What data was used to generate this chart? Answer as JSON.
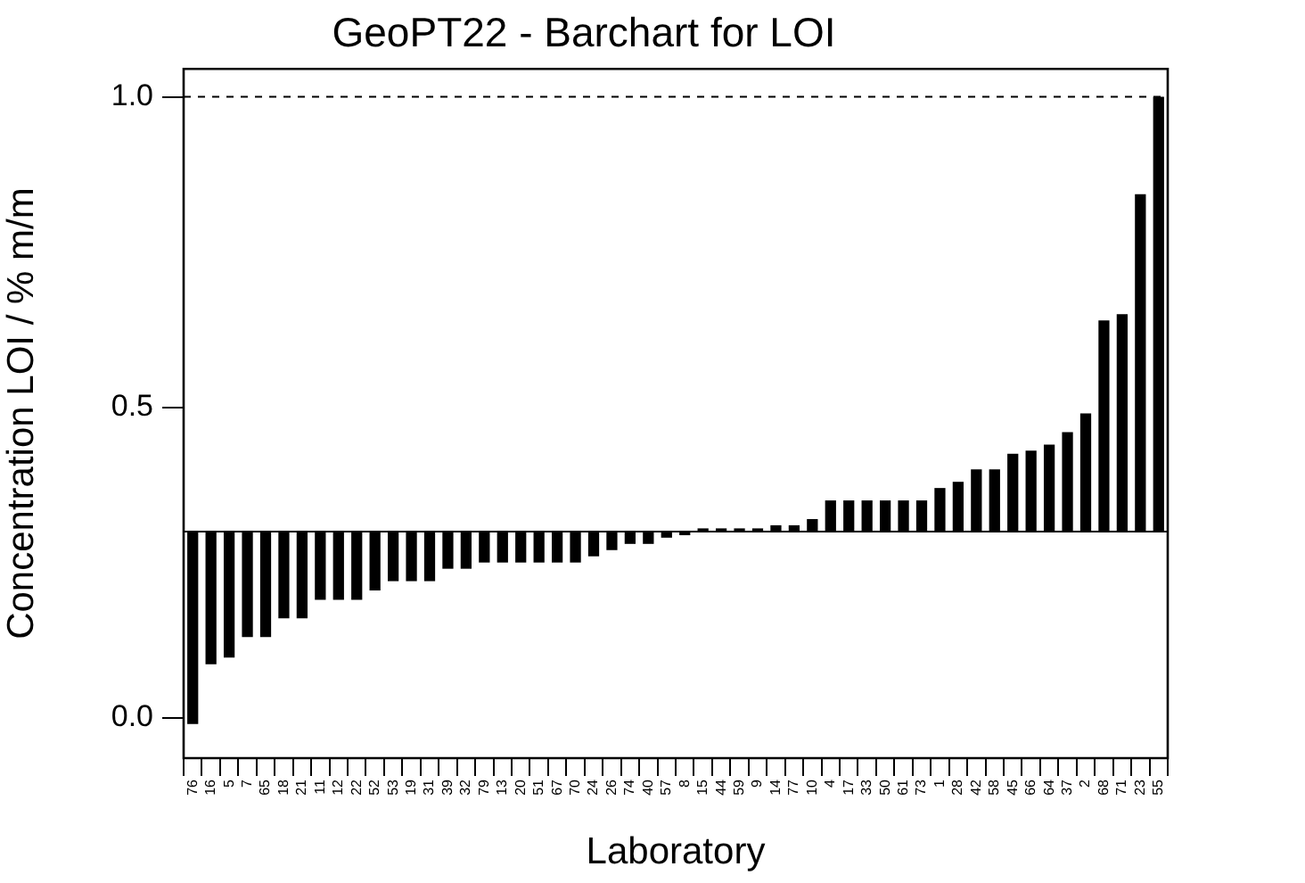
{
  "chart_data": {
    "type": "bar",
    "title": "GeoPT22 - Barchart for LOI",
    "xlabel": "Laboratory",
    "ylabel": "Concentration LOI / % m/m",
    "categories": [
      "76",
      "16",
      "5",
      "7",
      "65",
      "18",
      "21",
      "11",
      "12",
      "22",
      "52",
      "53",
      "19",
      "31",
      "39",
      "32",
      "79",
      "13",
      "20",
      "51",
      "67",
      "70",
      "24",
      "26",
      "74",
      "40",
      "57",
      "8",
      "15",
      "44",
      "59",
      "9",
      "14",
      "77",
      "10",
      "4",
      "17",
      "33",
      "50",
      "61",
      "73",
      "1",
      "28",
      "42",
      "58",
      "45",
      "66",
      "64",
      "37",
      "2",
      "68",
      "71",
      "23",
      "55"
    ],
    "base": [
      0.3,
      0.3,
      0.3,
      0.3,
      0.3,
      0.3,
      0.3,
      0.3,
      0.3,
      0.3,
      0.3,
      0.3,
      0.3,
      0.3,
      0.3,
      0.3,
      0.3,
      0.3,
      0.3,
      0.3,
      0.3,
      0.3,
      0.3,
      0.3,
      0.3,
      0.3,
      0.3,
      0.3,
      0.3,
      0.3,
      0.3,
      0.3,
      0.3,
      0.3,
      0.3,
      0.3,
      0.3,
      0.3,
      0.3,
      0.3,
      0.3,
      0.3,
      0.3,
      0.3,
      0.3,
      0.3,
      0.3,
      0.3,
      0.3,
      0.3,
      0.3,
      0.3,
      0.3,
      0.3
    ],
    "values": [
      -0.31,
      -0.214,
      -0.203,
      -0.17,
      -0.17,
      -0.14,
      -0.14,
      -0.11,
      -0.11,
      -0.11,
      -0.095,
      -0.08,
      -0.08,
      -0.08,
      -0.06,
      -0.06,
      -0.05,
      -0.05,
      -0.05,
      -0.05,
      -0.05,
      -0.05,
      -0.04,
      -0.03,
      -0.02,
      -0.02,
      -0.01,
      -0.006,
      0.005,
      0.005,
      0.005,
      0.005,
      0.01,
      0.01,
      0.02,
      0.05,
      0.05,
      0.05,
      0.05,
      0.05,
      0.05,
      0.07,
      0.08,
      0.1,
      0.1,
      0.125,
      0.13,
      0.14,
      0.16,
      0.19,
      0.34,
      0.35,
      0.543,
      0.7
    ],
    "color": "#000000",
    "ylim": [
      -0.065,
      1.045
    ],
    "yticks": [
      {
        "value": 0,
        "label": "0.0"
      },
      0.5,
      {
        "value": 1,
        "label": "1.0"
      }
    ],
    "ref_lines": [
      {
        "axis": "y",
        "value": 1.0,
        "line_style": "dashed",
        "color": "#000000"
      },
      {
        "axis": "y",
        "value": 0.3,
        "line_style": "solid",
        "color": "#000000"
      }
    ],
    "grid": false,
    "legend": false
  }
}
